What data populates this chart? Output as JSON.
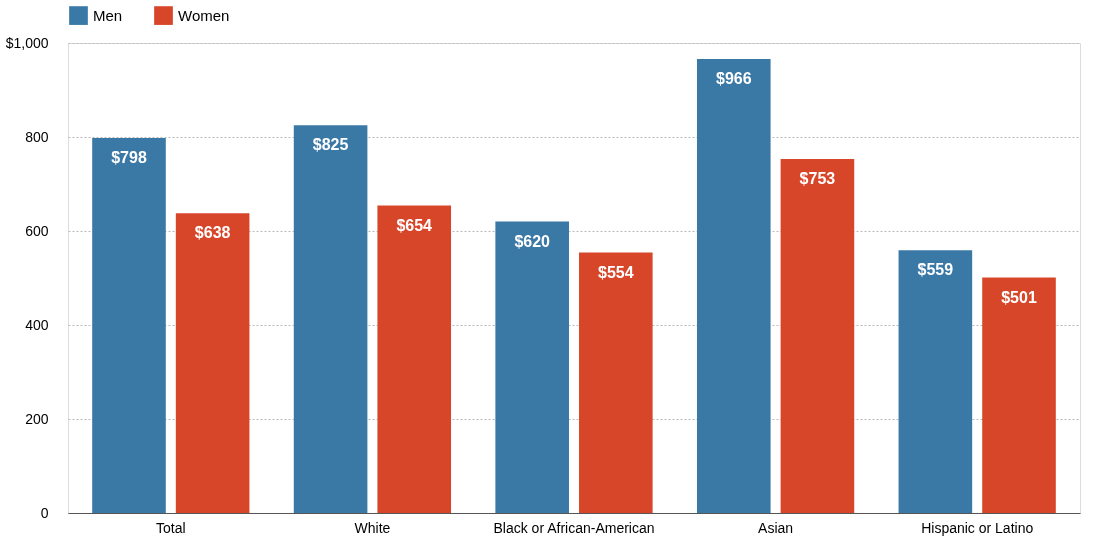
{
  "chart_data": {
    "type": "bar",
    "categories": [
      "Total",
      "White",
      "Black or African-American",
      "Asian",
      "Hispanic or Latino"
    ],
    "series": [
      {
        "name": "Men",
        "color": "#3a78a6",
        "values": [
          798,
          825,
          620,
          966,
          559
        ],
        "value_labels": [
          "$798",
          "$825",
          "$620",
          "$966",
          "$559"
        ]
      },
      {
        "name": "Women",
        "color": "#d8462a",
        "values": [
          638,
          654,
          554,
          753,
          501
        ],
        "value_labels": [
          "$638",
          "$654",
          "$554",
          "$753",
          "$501"
        ]
      }
    ],
    "ylim": [
      0,
      1000
    ],
    "yticks": [
      0,
      200,
      400,
      600,
      800,
      {
        "value": 1000,
        "label": "$1,000"
      }
    ],
    "grid": "y",
    "legend": "top left"
  }
}
